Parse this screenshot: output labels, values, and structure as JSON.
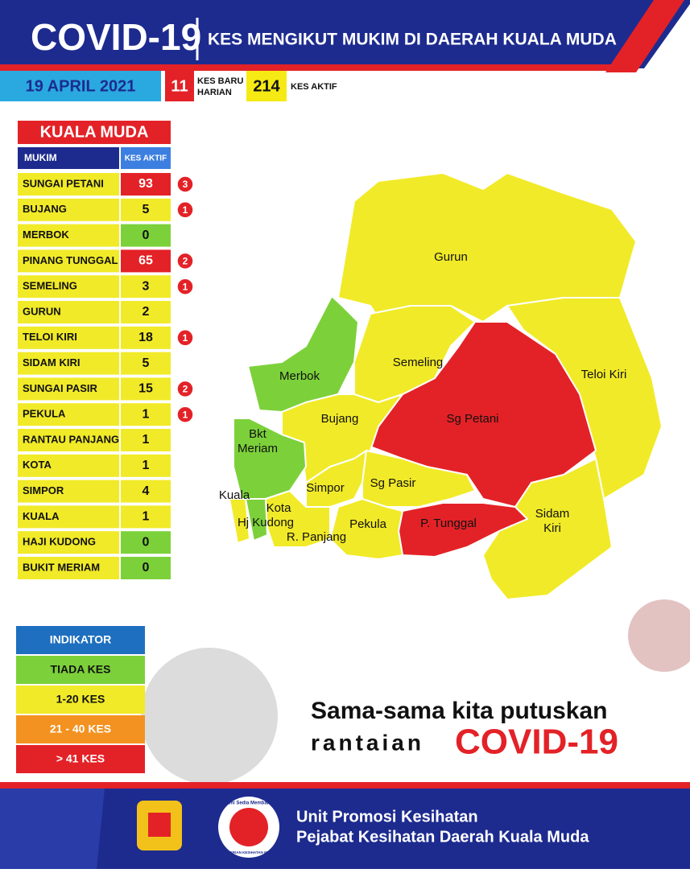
{
  "header": {
    "title": "COVID-19",
    "subtitle": "KES MENGIKUT MUKIM DI DAERAH KUALA MUDA",
    "date": "19 APRIL 2021",
    "new_cases": "11",
    "new_cases_label": [
      "KES BARU",
      "HARIAN"
    ],
    "active_cases": "214",
    "active_cases_label": "KES AKTIF"
  },
  "table": {
    "title": "KUALA MUDA",
    "columns": [
      "MUKIM",
      "KES AKTIF"
    ],
    "rows": [
      {
        "mukim": "SUNGAI PETANI",
        "kes_aktif": 93,
        "kes_baru": 3
      },
      {
        "mukim": "BUJANG",
        "kes_aktif": 5,
        "kes_baru": 1
      },
      {
        "mukim": "MERBOK",
        "kes_aktif": 0
      },
      {
        "mukim": "PINANG TUNGGAL",
        "kes_aktif": 65,
        "kes_baru": 2
      },
      {
        "mukim": "SEMELING",
        "kes_aktif": 3,
        "kes_baru": 1
      },
      {
        "mukim": "GURUN",
        "kes_aktif": 2
      },
      {
        "mukim": "TELOI KIRI",
        "kes_aktif": 18,
        "kes_baru": 1
      },
      {
        "mukim": "SIDAM KIRI",
        "kes_aktif": 5
      },
      {
        "mukim": "SUNGAI PASIR",
        "kes_aktif": 15,
        "kes_baru": 2
      },
      {
        "mukim": "PEKULA",
        "kes_aktif": 1,
        "kes_baru": 1
      },
      {
        "mukim": "RANTAU PANJANG",
        "kes_aktif": 1
      },
      {
        "mukim": "KOTA",
        "kes_aktif": 1
      },
      {
        "mukim": "SIMPOR",
        "kes_aktif": 4
      },
      {
        "mukim": "KUALA",
        "kes_aktif": 1
      },
      {
        "mukim": "HAJI KUDONG",
        "kes_aktif": 0
      },
      {
        "mukim": "BUKIT MERIAM",
        "kes_aktif": 0
      }
    ]
  },
  "map": {
    "labels": [
      [
        "Gurun"
      ],
      [
        "Merbok"
      ],
      [
        "Semeling"
      ],
      [
        "Teloi Kiri"
      ],
      [
        "Bujang"
      ],
      [
        "Sg Petani"
      ],
      [
        "Bkt",
        "Meriam"
      ],
      [
        "Simpor"
      ],
      [
        "Sg Pasir"
      ],
      [
        "Kuala"
      ],
      [
        "Kota"
      ],
      [
        "Hj Kudong"
      ],
      [
        "R. Panjang"
      ],
      [
        "Pekula"
      ],
      [
        "P. Tunggal"
      ],
      [
        "Sidam",
        "Kiri"
      ]
    ]
  },
  "legend": {
    "items": [
      "INDIKATOR",
      "TIADA KES",
      "1-20 KES",
      "21 - 40 KES",
      "> 41 KES"
    ]
  },
  "slogan": {
    "line1": "Sama-sama kita putuskan",
    "line2": "rantaian",
    "highlight": "COVID-19"
  },
  "footer": {
    "logo_text": [
      "Kami Sedia Membantu",
      "KEMENTERIAN KESIHATAN MALAYSIA"
    ],
    "line1": "Unit Promosi Kesihatan",
    "line2": "Pejabat Kesihatan Daerah Kuala Muda"
  }
}
